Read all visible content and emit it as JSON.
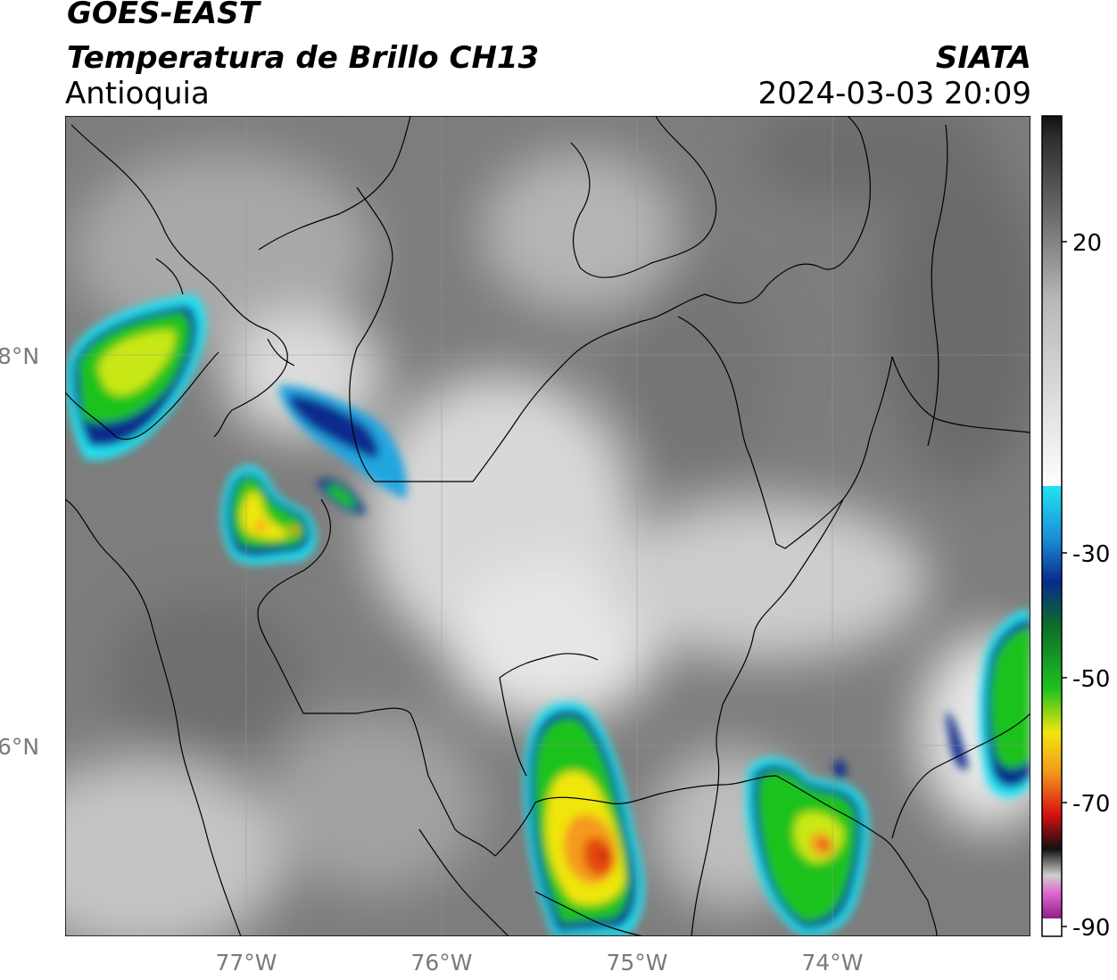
{
  "header": {
    "satellite": "GOES-EAST",
    "product": "Temperatura de Brillo CH13",
    "region": "Antioquia",
    "organization": "SIATA",
    "datetime": "2024-03-03 20:09"
  },
  "map": {
    "lat_ticks": [
      "8°N",
      "6°N"
    ],
    "lon_ticks": [
      "77°W",
      "76°W",
      "75°W",
      "74°W"
    ]
  },
  "colorbar": {
    "labels": [
      "20",
      "-30",
      "-50",
      "-70",
      "-90"
    ],
    "colors": {
      "warm_gray": "#7d7d7d",
      "cold_white": "#f5f5f5",
      "cyan": "#22e4f2",
      "blue": "#0a2a8c",
      "green": "#1fc21f",
      "yellow": "#f0e610",
      "orange": "#f59a1a",
      "red": "#d61010",
      "black": "#111111",
      "magenta": "#c33bb8"
    }
  }
}
